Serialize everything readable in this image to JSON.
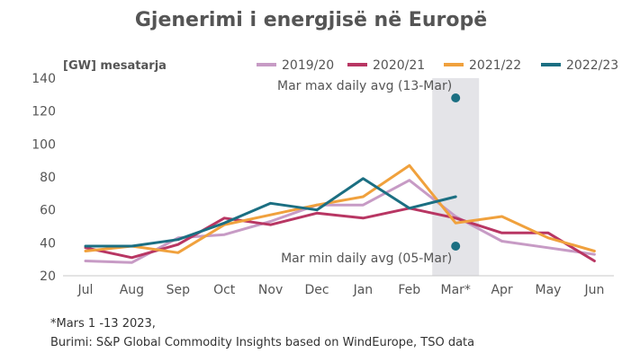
{
  "chart_data": {
    "type": "line",
    "title": "Gjenerimi i energjisë në Europë",
    "ylabel": "[GW] mesatarja",
    "xlabel": "",
    "categories": [
      "Jul",
      "Aug",
      "Sep",
      "Oct",
      "Nov",
      "Dec",
      "Jan",
      "Feb",
      "Mar*",
      "Apr",
      "May",
      "Jun"
    ],
    "ylim": [
      20,
      140
    ],
    "yticks": [
      20,
      40,
      60,
      80,
      100,
      120,
      140
    ],
    "grid": false,
    "legend_position": "top",
    "series": [
      {
        "name": "2019/20",
        "color": "#c79bc5",
        "values": [
          29,
          28,
          43,
          45,
          53,
          63,
          63,
          78,
          56,
          41,
          37,
          33
        ]
      },
      {
        "name": "2020/21",
        "color": "#b83663",
        "values": [
          37,
          31,
          39,
          55,
          51,
          58,
          55,
          61,
          55,
          46,
          46,
          29
        ]
      },
      {
        "name": "2021/22",
        "color": "#f0a13d",
        "values": [
          35,
          38,
          34,
          51,
          57,
          63,
          68,
          87,
          52,
          56,
          43,
          35
        ]
      },
      {
        "name": "2022/23",
        "color": "#1b6f82",
        "values": [
          38,
          38,
          42,
          52,
          64,
          60,
          79,
          61,
          68,
          null,
          null,
          null
        ]
      }
    ],
    "highlight_band": {
      "category": "Mar*",
      "color": "#e4e4e8"
    },
    "markers": [
      {
        "label": "Mar max daily avg (13-Mar)",
        "category": "Mar*",
        "value": 128,
        "color": "#1b6f82"
      },
      {
        "label": "Mar min daily avg (05-Mar)",
        "category": "Mar*",
        "value": 38,
        "color": "#1b6f82"
      }
    ]
  },
  "footnotes": {
    "note": "*Mars 1 -13 2023,",
    "source": "Burimi: S&P Global Commodity Insights based on WindEurope, TSO data"
  }
}
